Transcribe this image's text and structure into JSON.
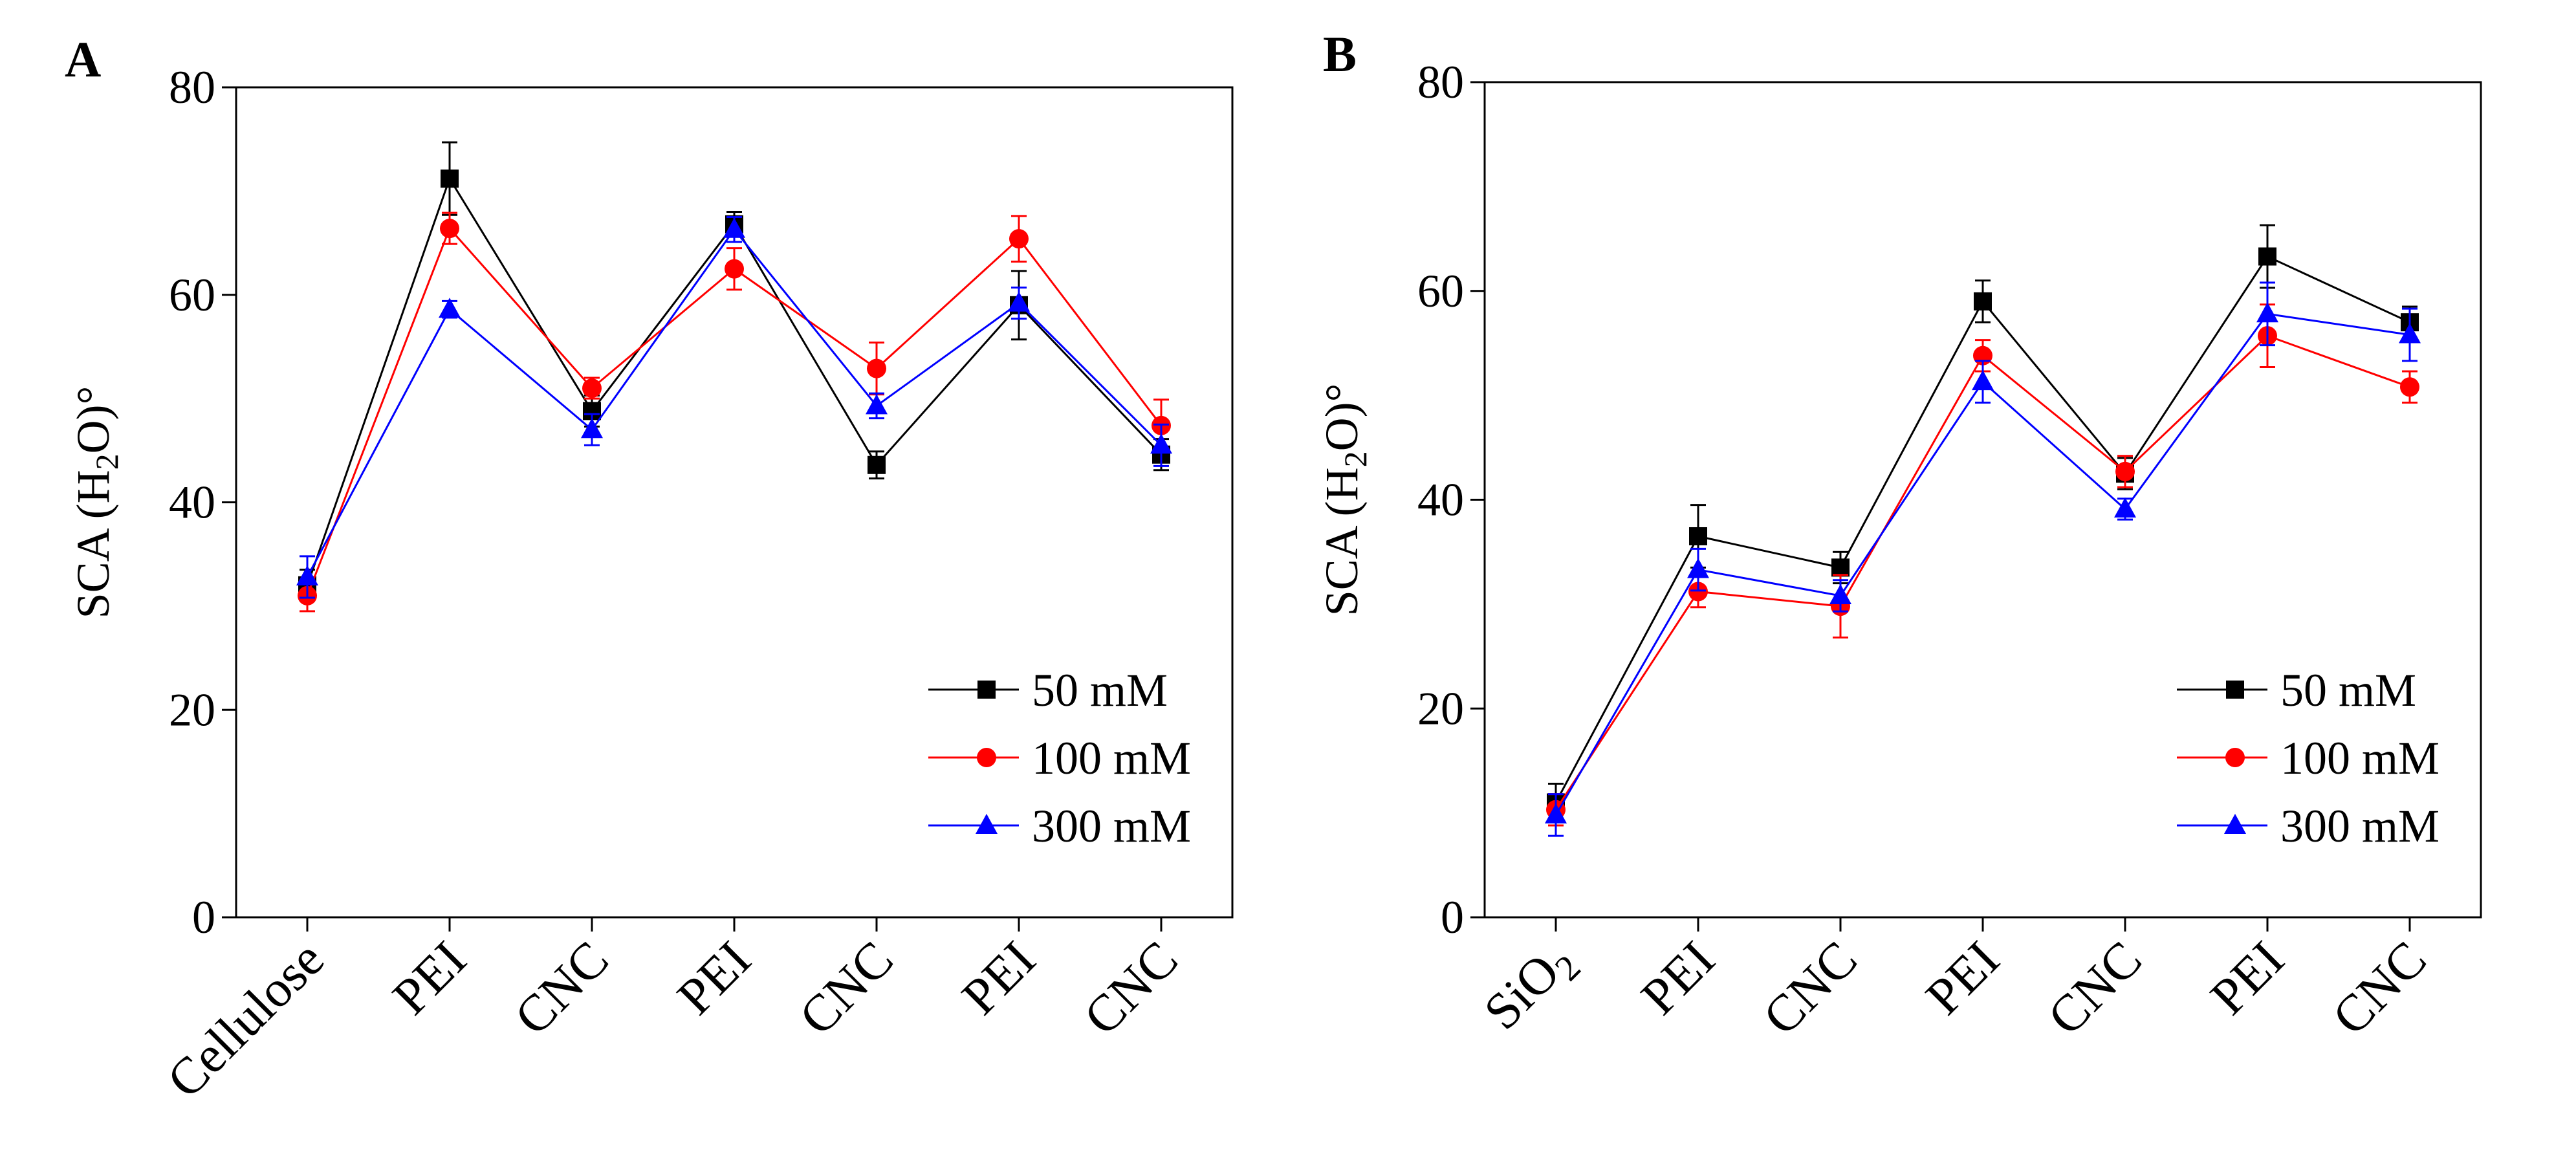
{
  "colors": {
    "50 mM": "#000000",
    "100 mM": "#ff0000",
    "300 mM": "#0000ff"
  },
  "chart_data": [
    {
      "panel_label": "A",
      "type": "line",
      "categories": [
        "Cellulose",
        "PEI",
        "CNC",
        "PEI",
        "CNC",
        "PEI",
        "CNC"
      ],
      "ylabel": "SCA (H2O)°",
      "ylabel_parts": {
        "pre": "SCA (H",
        "sub": "2",
        "post": "O)°"
      },
      "ylim": [
        0,
        80
      ],
      "yticks": [
        0,
        20,
        40,
        60,
        80
      ],
      "legend_position": "lower-right",
      "series": [
        {
          "name": "50 mM",
          "marker": "square",
          "color": "#000000",
          "values": [
            32,
            71.2,
            48.8,
            66.8,
            43.6,
            59,
            44.6
          ],
          "errors": [
            1.5,
            3.5,
            1.5,
            1.2,
            1.3,
            3.3,
            1.5
          ]
        },
        {
          "name": "100 mM",
          "marker": "circle",
          "color": "#ff0000",
          "values": [
            31,
            66.4,
            51,
            62.5,
            52.9,
            65.4,
            47.4
          ],
          "errors": [
            1.5,
            1.5,
            1,
            2,
            2.5,
            2.2,
            2.5
          ]
        },
        {
          "name": "300 mM",
          "marker": "triangle",
          "color": "#0000ff",
          "values": [
            32.8,
            58.6,
            47,
            66.3,
            49.3,
            59.2,
            45.5
          ],
          "errors": [
            2,
            0.8,
            1.5,
            1.2,
            1.2,
            1.5,
            2
          ]
        }
      ]
    },
    {
      "panel_label": "B",
      "type": "line",
      "categories": [
        "SiO2",
        "PEI",
        "CNC",
        "PEI",
        "CNC",
        "PEI",
        "CNC"
      ],
      "category_parts": [
        {
          "pre": "SiO",
          "sub": "2"
        }
      ],
      "ylabel": "SCA (H2O)°",
      "ylabel_parts": {
        "pre": "SCA (H",
        "sub": "2",
        "post": "O)°"
      },
      "ylim": [
        0,
        80
      ],
      "yticks": [
        0,
        20,
        40,
        60,
        80
      ],
      "legend_position": "lower-right",
      "series": [
        {
          "name": "50 mM",
          "marker": "square",
          "color": "#000000",
          "values": [
            11,
            36.5,
            33.5,
            59,
            42.5,
            63.3,
            57
          ],
          "errors": [
            1.8,
            3,
            1.5,
            2,
            1.5,
            3,
            1.5
          ]
        },
        {
          "name": "100 mM",
          "marker": "circle",
          "color": "#ff0000",
          "values": [
            10.3,
            31.2,
            29.8,
            53.8,
            42.7,
            55.7,
            50.8
          ],
          "errors": [
            1.5,
            1.5,
            3,
            1.5,
            1.5,
            3,
            1.5
          ]
        },
        {
          "name": "300 mM",
          "marker": "triangle",
          "color": "#0000ff",
          "values": [
            9.8,
            33.3,
            30.8,
            51.3,
            39.1,
            57.8,
            55.8
          ],
          "errors": [
            2,
            2,
            1.5,
            2,
            1,
            3,
            2.5
          ]
        }
      ]
    }
  ]
}
